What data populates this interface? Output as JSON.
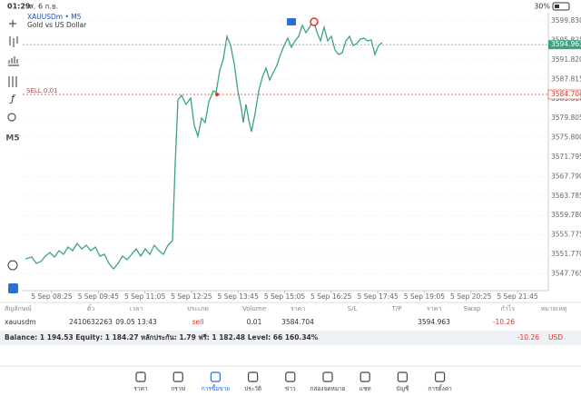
{
  "status": {
    "time": "01:29",
    "date": "ส. 6 ก.ย.",
    "battery": "30%"
  },
  "sidebar": {
    "timeframe": "M5"
  },
  "chart": {
    "type": "line",
    "symbol": "XAUUSDm • M5",
    "description": "Gold vs US Dollar",
    "order_label": "SELL 0.01",
    "color": "#3aa57a",
    "values": [
      3550.83,
      3551.21,
      3549.9,
      3550.27,
      3551.39,
      3552.14,
      3551.21,
      3552.52,
      3551.77,
      3553.27,
      3552.52,
      3554.01,
      3552.89,
      3553.64,
      3552.52,
      3553.27,
      3551.39,
      3551.77,
      3549.9,
      3548.77,
      3549.9,
      3551.39,
      3550.64,
      3551.77,
      3552.89,
      3551.39,
      3552.89,
      3551.77,
      3553.64,
      3552.52,
      3551.77,
      3553.64,
      3554.58,
      3570.48,
      3583.58,
      3584.52,
      3582.65,
      3583.96,
      3578.34,
      3576.1,
      3579.84,
      3578.91,
      3583.21,
      3585.46,
      3585.08,
      3589.57,
      3592.01,
      3596.69,
      3594.81,
      3591.07,
      3585.46,
      3581.71,
      3578.91,
      3582.65,
      3579.47,
      3577.03,
      3580.78,
      3585.46,
      3588.26,
      3590.14,
      3587.7,
      3589.2,
      3590.7,
      3592.94,
      3594.81,
      3596.31,
      3594.44,
      3595.75,
      3596.69,
      3598.93,
      3597.43,
      3598.56,
      3600.06,
      3597.62,
      3595.75,
      3598.56,
      3595.75,
      3596.69,
      3593.88,
      3592.94,
      3593.32,
      3595.75,
      3596.69,
      3594.81,
      3595.19,
      3596.12,
      3596.31,
      3595.75,
      3595.94,
      3592.94,
      3594.81,
      3595.38
    ],
    "yticks": [
      {
        "value": 3599.83,
        "label": "3599.830"
      },
      {
        "value": 3595.825,
        "label": "3595.825"
      },
      {
        "value": 3591.82,
        "label": "3591.820"
      },
      {
        "value": 3587.815,
        "label": "3587.815"
      },
      {
        "value": 3583.81,
        "label": "3583.810"
      },
      {
        "value": 3579.805,
        "label": "3579.805"
      },
      {
        "value": 3575.8,
        "label": "3575.800"
      },
      {
        "value": 3571.795,
        "label": "3571.795"
      },
      {
        "value": 3567.79,
        "label": "3567.790"
      },
      {
        "value": 3563.785,
        "label": "3563.785"
      },
      {
        "value": 3559.78,
        "label": "3559.780"
      },
      {
        "value": 3555.775,
        "label": "3555.775"
      },
      {
        "value": 3551.77,
        "label": "3551.770"
      },
      {
        "value": 3547.765,
        "label": "3547.765"
      }
    ],
    "xticks": [
      "5 Sep 08:25",
      "5 Sep 09:45",
      "5 Sep 11:05",
      "5 Sep 12:25",
      "5 Sep 13:45",
      "5 Sep 15:05",
      "5 Sep 16:25",
      "5 Sep 17:45",
      "5 Sep 19:05",
      "5 Sep 20:25",
      "5 Sep 21:45"
    ],
    "current_price": 3594.963,
    "order_price": 3584.704
  },
  "table": {
    "headers": [
      "สัญลักษณ์",
      "ตั๋ว",
      "เวลา",
      "ประเภท",
      "Volume",
      "ราคา",
      "S/L",
      "T/P",
      "ราคา",
      "Swap",
      "กำไร",
      "หมายเหตุ"
    ],
    "rows": [
      [
        "xauusdm",
        "2410632263",
        "09.05 13:43",
        "sell",
        "0.01",
        "3584.704",
        "",
        "",
        "3594.963",
        "",
        "-10.26",
        ""
      ]
    ]
  },
  "balance": {
    "text": "Balance: 1 194.53 Equity: 1 184.27 หลักประกัน: 1.79 ฟรี: 1 182.48 Level: 66 160.34%",
    "profit": "-10.26",
    "currency": "USD"
  },
  "nav": [
    "ราคา",
    "กราฟ",
    "การซื้อขาย",
    "ประวัติ",
    "ข่าว",
    "กล่องจดหมาย",
    "แชท",
    "บัญชี",
    "การตั้งค่า"
  ]
}
